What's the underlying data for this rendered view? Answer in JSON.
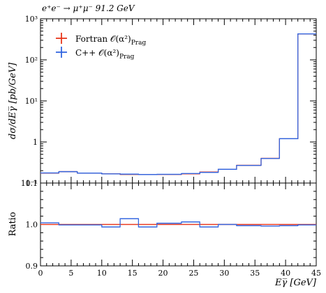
{
  "chart_data": [
    {
      "type": "line",
      "panel": "main",
      "title": "e⁺e⁻ → μ⁺μ⁻ 91.2 GeV",
      "xlabel": "",
      "ylabel": "dσ/dEγ̅ [pb/GeV]",
      "xlim": [
        0,
        45
      ],
      "ylim": [
        0.1,
        1000
      ],
      "yscale": "log",
      "legend_position": "top-left",
      "y_tick_labels": [
        "10⁻¹",
        "1",
        "10¹",
        "10²",
        "10³"
      ],
      "bin_edges": [
        0,
        3,
        6,
        10,
        13,
        16,
        19,
        23,
        26,
        29,
        32,
        36,
        39,
        42,
        45
      ],
      "series": [
        {
          "name": "Fortran 𝒪(α²)",
          "name_sub": "Prag",
          "color": "#e8361c",
          "values": [
            0.175,
            0.19,
            0.175,
            0.168,
            0.162,
            0.162,
            0.162,
            0.168,
            0.185,
            0.215,
            0.27,
            0.4,
            1.2,
            430
          ]
        },
        {
          "name": "C++ 𝒪(α²)",
          "name_sub": "Prag",
          "color": "#3366e0",
          "values": [
            0.176,
            0.19,
            0.175,
            0.167,
            0.165,
            0.161,
            0.163,
            0.17,
            0.182,
            0.216,
            0.269,
            0.398,
            1.2,
            430
          ]
        }
      ]
    },
    {
      "type": "line",
      "panel": "ratio",
      "xlabel": "Eγ̅ [GeV]",
      "ylabel": "Ratio",
      "xlim": [
        0,
        45
      ],
      "ylim": [
        0.9,
        1.1
      ],
      "x_ticks": [
        0,
        5,
        10,
        15,
        20,
        25,
        30,
        35,
        40,
        45
      ],
      "y_ticks": [
        0.9,
        1.0,
        1.1
      ],
      "y_tick_labels": [
        "0.9",
        "1.0",
        "1.1"
      ],
      "bin_edges": [
        0,
        3,
        6,
        10,
        13,
        16,
        19,
        23,
        26,
        29,
        32,
        36,
        39,
        42,
        45
      ],
      "series": [
        {
          "name": "Fortran",
          "color": "#e8361c",
          "values": [
            1.0,
            1.0,
            1.0,
            1.0,
            1.0,
            1.0,
            1.0,
            1.0,
            1.0,
            1.0,
            1.0,
            1.0,
            1.0,
            1.0
          ]
        },
        {
          "name": "C++",
          "color": "#3366e0",
          "values": [
            1.004,
            0.999,
            0.999,
            0.994,
            1.014,
            0.994,
            1.003,
            1.006,
            0.994,
            1.0,
            0.997,
            0.996,
            0.997,
            0.999
          ]
        }
      ]
    }
  ]
}
